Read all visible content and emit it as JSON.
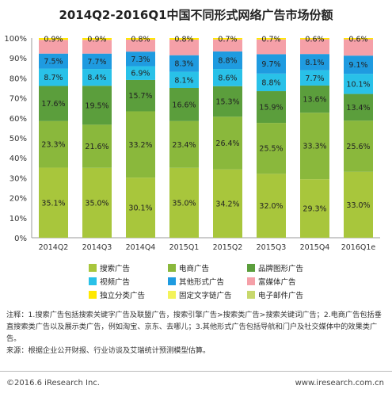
{
  "title": "2014Q2-2016Q1中国不同形式网络广告市场份额",
  "chart_data": {
    "type": "bar",
    "stacked": true,
    "categories": [
      "2014Q2",
      "2014Q3",
      "2014Q4",
      "2015Q1",
      "2015Q2",
      "2015Q3",
      "2015Q4",
      "2016Q1e"
    ],
    "ylim": [
      0,
      100
    ],
    "y_ticks": [
      "0%",
      "10%",
      "20%",
      "30%",
      "40%",
      "50%",
      "60%",
      "70%",
      "80%",
      "90%",
      "100%"
    ],
    "grid": false,
    "legend_position": "bottom",
    "series": [
      {
        "name": "搜索广告",
        "color": "#a8c63c",
        "values": [
          35.1,
          35.0,
          30.1,
          35.0,
          34.2,
          32.0,
          29.3,
          33.0
        ],
        "labels": [
          "35.1%",
          "35.0%",
          "30.1%",
          "35.0%",
          "34.2%",
          "32.0%",
          "29.3%",
          "33.0%"
        ]
      },
      {
        "name": "电商广告",
        "color": "#8ab83c",
        "values": [
          23.3,
          21.6,
          33.2,
          23.4,
          26.4,
          25.5,
          33.3,
          25.6
        ],
        "labels": [
          "23.3%",
          "21.6%",
          "33.2%",
          "23.4%",
          "26.4%",
          "25.5%",
          "33.3%",
          "25.6%"
        ]
      },
      {
        "name": "品牌图形广告",
        "color": "#5b9e3c",
        "values": [
          17.6,
          19.5,
          15.7,
          16.6,
          15.3,
          15.9,
          13.6,
          13.4
        ],
        "labels": [
          "17.6%",
          "19.5%",
          "15.7%",
          "16.6%",
          "15.3%",
          "15.9%",
          "13.6%",
          "13.4%"
        ]
      },
      {
        "name": "视频广告",
        "color": "#29c1e8",
        "values": [
          8.7,
          8.4,
          6.9,
          8.1,
          8.6,
          8.8,
          7.7,
          10.1
        ],
        "labels": [
          "8.7%",
          "8.4%",
          "6.9%",
          "8.1%",
          "8.6%",
          "8.8%",
          "7.7%",
          "10.1%"
        ]
      },
      {
        "name": "其他形式广告",
        "color": "#1f9be0",
        "values": [
          7.5,
          7.7,
          7.3,
          8.3,
          8.8,
          9.7,
          8.1,
          9.1
        ],
        "labels": [
          "7.5%",
          "7.7%",
          "7.3%",
          "8.3%",
          "8.8%",
          "9.7%",
          "8.1%",
          "9.1%"
        ]
      },
      {
        "name": "富媒体广告",
        "color": "#f5a0a8",
        "values": [
          6.9,
          6.9,
          6.0,
          7.8,
          6.0,
          7.4,
          7.4,
          8.2
        ],
        "labels": [
          "",
          "",
          "",
          "",
          "",
          "",
          "",
          ""
        ]
      },
      {
        "name": "固定文字链广告",
        "color": "#f3f35a",
        "values": [
          0.0,
          0.0,
          0.0,
          0.0,
          0.0,
          0.0,
          0.0,
          0.0
        ],
        "labels": [
          "",
          "",
          "",
          "",
          "",
          "",
          "",
          ""
        ]
      },
      {
        "name": "独立分类广告",
        "color": "#ffe800",
        "values": [
          0.9,
          0.9,
          0.8,
          0.8,
          0.7,
          0.7,
          0.6,
          0.6
        ],
        "labels": [
          "0.9%",
          "0.9%",
          "0.8%",
          "0.8%",
          "0.7%",
          "0.7%",
          "0.6%",
          "0.6%"
        ]
      },
      {
        "name": "电子邮件广告",
        "color": "#c8d86c",
        "values": [
          0,
          0,
          0,
          0,
          0,
          0,
          0,
          0
        ],
        "labels": [
          "",
          "",
          "",
          "",
          "",
          "",
          "",
          ""
        ]
      }
    ]
  },
  "legend": [
    {
      "label": "搜索广告",
      "color": "#a8c63c"
    },
    {
      "label": "电商广告",
      "color": "#8ab83c"
    },
    {
      "label": "品牌图形广告",
      "color": "#5b9e3c"
    },
    {
      "label": "视频广告",
      "color": "#29c1e8"
    },
    {
      "label": "其他形式广告",
      "color": "#1f9be0"
    },
    {
      "label": "富媒体广告",
      "color": "#f5a0a8"
    },
    {
      "label": "独立分类广告",
      "color": "#ffe800"
    },
    {
      "label": "固定文字链广告",
      "color": "#f3f35a"
    },
    {
      "label": "电子邮件广告",
      "color": "#c8d86c"
    }
  ],
  "notes": {
    "line1": "注释：1.搜索广告包括搜索关键字广告及联盟广告，搜索引擎广告>搜索类广告>搜索关键词广告；2.电商广告包括垂直搜索类广告以及展示类广告，例如淘宝、京东、去哪儿；3.其他形式广告包括导航和门户及社交媒体中的效果类广告。",
    "line2": "来源：根据企业公开财报、行业访谈及艾瑞统计预测模型估算。"
  },
  "footer": {
    "copyright": "©2016.6 iResearch Inc.",
    "website": "www.iresearch.com.cn"
  }
}
